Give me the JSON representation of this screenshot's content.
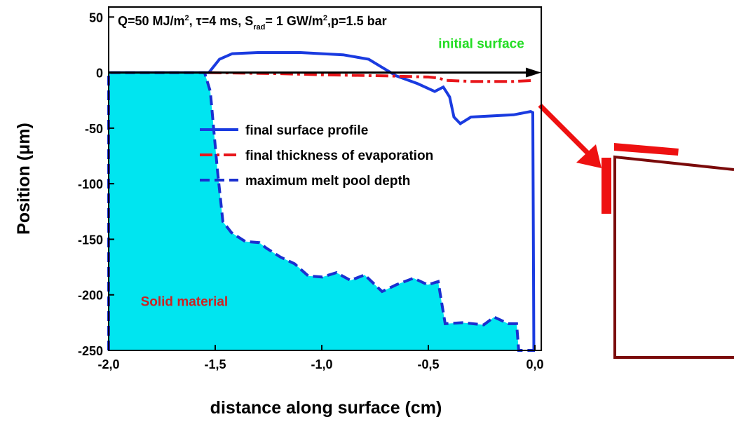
{
  "chart_data": {
    "type": "line",
    "title_parts": [
      {
        "text": "Q=50 MJ/m",
        "style": "normal"
      },
      {
        "text": "2",
        "style": "sup"
      },
      {
        "text": ", τ=4 ms, S",
        "style": "normal"
      },
      {
        "text": "rad",
        "style": "sub"
      },
      {
        "text": "= 1 GW/m",
        "style": "normal"
      },
      {
        "text": "2",
        "style": "sup"
      },
      {
        "text": ",p=1.5 bar",
        "style": "normal"
      }
    ],
    "x_label": "distance along surface (cm)",
    "y_label": "Position (μm)",
    "annotations": [
      {
        "text": "initial surface",
        "color": "#22dd22",
        "x": -0.05,
        "y": 22,
        "anchor": "end"
      },
      {
        "text": "Solid material",
        "color": "#cc2222",
        "x": -1.85,
        "y": -210,
        "anchor": "start"
      }
    ],
    "xlim": [
      -2,
      0.03
    ],
    "ylim": [
      -250,
      59
    ],
    "xticks": [
      {
        "value": -2,
        "label": "-2,0"
      },
      {
        "value": -1.5,
        "label": "-1,5"
      },
      {
        "value": -1,
        "label": "-1,0"
      },
      {
        "value": -0.5,
        "label": "-0,5"
      },
      {
        "value": 0,
        "label": "0,0"
      }
    ],
    "yticks": [
      -250,
      -200,
      -150,
      -100,
      -50,
      0,
      50
    ],
    "series": [
      {
        "name": "final surface profile",
        "color": "#1a3be0",
        "dash": "solid",
        "fill": null,
        "x": [
          -2,
          -1.53,
          -1.48,
          -1.42,
          -1.3,
          -1.1,
          -0.9,
          -0.78,
          -0.72,
          -0.65,
          -0.55,
          -0.47,
          -0.43,
          -0.4,
          -0.38,
          -0.35,
          -0.3,
          -0.1,
          -0.02,
          -0.01,
          -0.005
        ],
        "values": [
          0,
          0,
          12,
          17,
          18,
          18,
          16,
          12,
          5,
          -3,
          -10,
          -17,
          -13,
          -22,
          -40,
          -46,
          -40,
          -38,
          -35,
          -36,
          -250
        ]
      },
      {
        "name": "final thickness of evaporation",
        "color": "#e8161b",
        "dash": "dashdot",
        "fill": null,
        "x": [
          -1.53,
          -1.2,
          -1.0,
          -0.7,
          -0.5,
          -0.45,
          -0.42,
          -0.3,
          -0.1,
          0
        ],
        "values": [
          0,
          -1,
          -2,
          -3,
          -4,
          -5,
          -7,
          -8,
          -8,
          -7
        ]
      },
      {
        "name": "maximum melt pool depth",
        "color": "#1a2fd0",
        "dash": "dash",
        "fill": "#00e5f0",
        "x": [
          -2,
          -2,
          -1.55,
          -1.523,
          -1.49,
          -1.464,
          -1.424,
          -1.359,
          -1.293,
          -1.26,
          -1.194,
          -1.128,
          -1.063,
          -0.997,
          -0.931,
          -0.865,
          -0.799,
          -0.717,
          -0.651,
          -0.569,
          -0.503,
          -0.454,
          -0.421,
          -0.339,
          -0.24,
          -0.191,
          -0.125,
          -0.086,
          -0.076,
          0
        ],
        "values": [
          -250,
          0,
          0,
          -17,
          -87,
          -134,
          -144,
          -152,
          -153,
          -158,
          -166,
          -172,
          -183,
          -184,
          -180,
          -187,
          -182,
          -197,
          -191,
          -185,
          -191,
          -188,
          -226,
          -225,
          -227,
          -220,
          -226,
          -226,
          -250,
          -250
        ]
      }
    ],
    "legend_position": "center"
  }
}
